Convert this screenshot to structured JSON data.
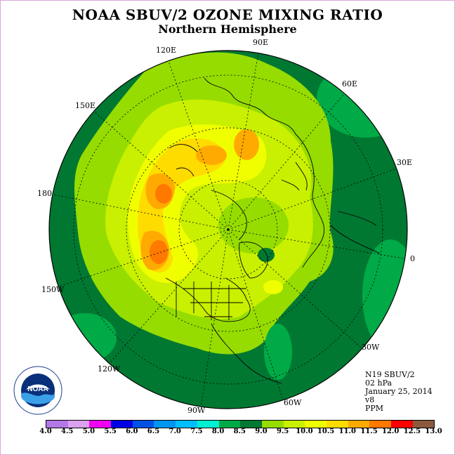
{
  "title": "NOAA SBUV/2 OZONE MIXING RATIO",
  "subtitle": "Northern Hemisphere",
  "longitude_labels": [
    "90E",
    "60E",
    "30E",
    "0",
    "30W",
    "60W",
    "90W",
    "120W",
    "150W",
    "180",
    "150E",
    "120E"
  ],
  "meta": {
    "satellite": "N19 SBUV/2",
    "pressure": "02 hPa",
    "date": "January 25, 2014",
    "version": "v8",
    "units": "PPM"
  },
  "logo": {
    "text": "NOAA",
    "ring_text": "NATIONAL OCEANIC AND ATMOSPHERIC ADMINISTRATION · U.S. DEPARTMENT OF COMMERCE"
  },
  "colorbar": {
    "ticks": [
      "4.0",
      "4.5",
      "5.0",
      "5.5",
      "6.0",
      "6.5",
      "7.0",
      "7.5",
      "8.0",
      "8.5",
      "9.0",
      "9.5",
      "10.0",
      "10.5",
      "11.0",
      "11.5",
      "12.0",
      "12.5",
      "13.0"
    ],
    "colors": [
      "#b478e6",
      "#dca0f0",
      "#f000f0",
      "#0000e6",
      "#0050e6",
      "#0096f0",
      "#00beff",
      "#00f0d2",
      "#00aa46",
      "#007832",
      "#96dc00",
      "#c8f000",
      "#f0ff00",
      "#ffdc00",
      "#ffaa00",
      "#ff7800",
      "#ff0000",
      "#8b5a3c"
    ]
  },
  "colors": {
    "frame": "#d9a8d9",
    "dark_green": "#007832",
    "mid_green": "#00aa46",
    "yellow_green": "#96dc00"
  }
}
